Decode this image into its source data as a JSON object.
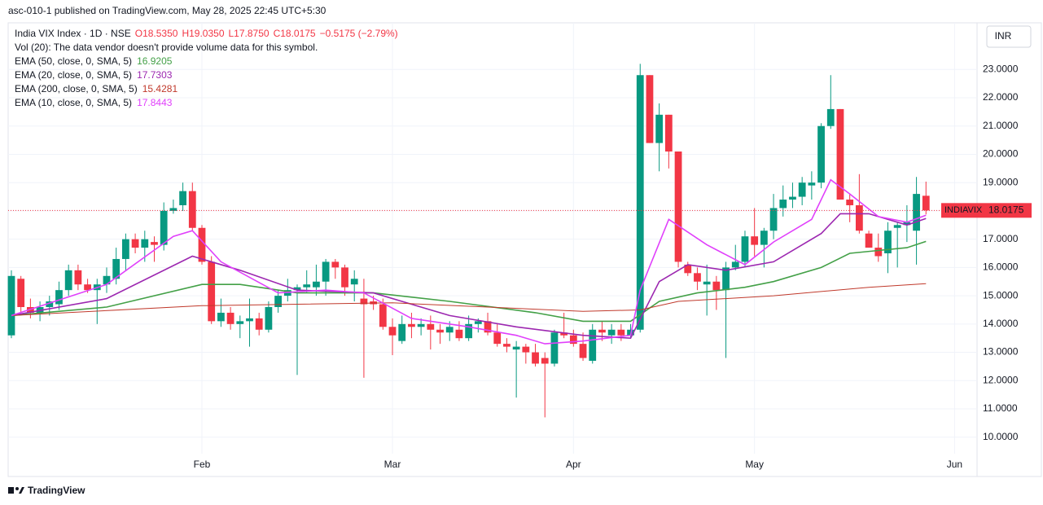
{
  "header": "asc-010-1 published on TradingView.com, May 28, 2025 22:45 UTC+5:30",
  "footer": "TradingView",
  "chart_data": {
    "type": "candlestick",
    "symbol": "India VIX Index · 1D · NSE",
    "ohlc_labels": [
      "O18.5350",
      "H19.0350",
      "L17.8750",
      "C18.0175",
      "−0.5175 (−2.79%)"
    ],
    "volume_note": "Vol (20): The data vendor doesn't provide volume data for this symbol.",
    "currency": "INR",
    "last_price": {
      "name": "INDIAVIX",
      "value": 18.0175
    },
    "up_color": "#089981",
    "down_color": "#f23645",
    "xlim": [
      -0.34,
      101.36
    ],
    "xticks": [
      {
        "value": 20,
        "label": "Feb"
      },
      {
        "value": 40,
        "label": "Mar"
      },
      {
        "value": 59,
        "label": "Apr"
      },
      {
        "value": 78,
        "label": "May"
      },
      {
        "value": 99,
        "label": "Jun"
      }
    ],
    "ylim": [
      8.61,
      24.65
    ],
    "yticks": [
      {
        "value": 10,
        "label": "10.0000"
      },
      {
        "value": 11,
        "label": "11.0000"
      },
      {
        "value": 12,
        "label": "12.0000"
      },
      {
        "value": 13,
        "label": "13.0000"
      },
      {
        "value": 14,
        "label": "14.0000"
      },
      {
        "value": 15,
        "label": "15.0000"
      },
      {
        "value": 16,
        "label": "16.0000"
      },
      {
        "value": 17,
        "label": "17.0000"
      },
      {
        "value": 18,
        "label": "18.0000"
      },
      {
        "value": 19,
        "label": "19.0000"
      },
      {
        "value": 20,
        "label": "20.0000"
      },
      {
        "value": 21,
        "label": "21.0000"
      },
      {
        "value": 22,
        "label": "22.0000"
      },
      {
        "value": 23,
        "label": "23.0000"
      }
    ],
    "grid": true,
    "candles": [
      [
        13.6,
        15.9,
        13.5,
        15.7
      ],
      [
        15.6,
        15.7,
        14.4,
        14.6
      ],
      [
        14.6,
        14.9,
        14.2,
        14.4
      ],
      [
        14.4,
        14.8,
        14.1,
        14.6
      ],
      [
        14.6,
        15.0,
        14.3,
        14.8
      ],
      [
        14.7,
        15.5,
        14.5,
        15.2
      ],
      [
        15.2,
        16.1,
        15.0,
        15.9
      ],
      [
        15.9,
        16.1,
        15.2,
        15.4
      ],
      [
        15.4,
        15.6,
        15.1,
        15.2
      ],
      [
        15.2,
        15.6,
        14.0,
        15.4
      ],
      [
        15.4,
        16.0,
        15.1,
        15.7
      ],
      [
        15.6,
        16.7,
        15.4,
        16.3
      ],
      [
        16.3,
        17.2,
        15.9,
        17.0
      ],
      [
        17.0,
        17.2,
        16.5,
        16.7
      ],
      [
        16.7,
        17.3,
        16.2,
        17.0
      ],
      [
        16.9,
        17.1,
        16.2,
        16.8
      ],
      [
        16.8,
        18.3,
        16.6,
        18.0
      ],
      [
        18.0,
        18.4,
        17.9,
        18.1
      ],
      [
        18.2,
        19.0,
        18.0,
        18.7
      ],
      [
        18.7,
        19.0,
        17.3,
        17.4
      ],
      [
        17.4,
        17.5,
        16.1,
        16.2
      ],
      [
        16.2,
        16.4,
        14.0,
        14.1
      ],
      [
        14.1,
        14.9,
        13.9,
        14.4
      ],
      [
        14.4,
        14.6,
        13.8,
        14.0
      ],
      [
        14.0,
        14.3,
        13.5,
        14.1
      ],
      [
        14.1,
        14.9,
        13.2,
        14.2
      ],
      [
        14.2,
        14.4,
        13.6,
        13.8
      ],
      [
        13.8,
        14.8,
        13.7,
        14.6
      ],
      [
        14.6,
        15.2,
        14.4,
        15.0
      ],
      [
        15.0,
        15.6,
        14.8,
        15.2
      ],
      [
        15.2,
        15.4,
        12.2,
        15.3
      ],
      [
        15.3,
        15.9,
        15.1,
        15.4
      ],
      [
        15.3,
        16.1,
        15.0,
        15.5
      ],
      [
        15.5,
        16.3,
        15.0,
        16.2
      ],
      [
        16.2,
        16.3,
        15.6,
        16.0
      ],
      [
        16.0,
        16.1,
        15.0,
        15.3
      ],
      [
        15.4,
        15.9,
        14.8,
        15.6
      ],
      [
        14.9,
        15.6,
        12.1,
        14.7
      ],
      [
        14.8,
        15.0,
        14.5,
        14.7
      ],
      [
        14.7,
        14.9,
        13.8,
        13.9
      ],
      [
        13.9,
        14.2,
        12.9,
        13.6
      ],
      [
        13.4,
        14.3,
        13.3,
        14.0
      ],
      [
        14.0,
        14.4,
        13.5,
        13.9
      ],
      [
        13.9,
        14.2,
        13.6,
        14.0
      ],
      [
        14.0,
        14.3,
        13.1,
        13.8
      ],
      [
        13.8,
        14.0,
        13.3,
        13.7
      ],
      [
        13.7,
        14.1,
        13.4,
        13.9
      ],
      [
        13.8,
        14.1,
        13.4,
        13.5
      ],
      [
        13.5,
        14.3,
        13.4,
        14.0
      ],
      [
        14.0,
        14.2,
        13.7,
        14.1
      ],
      [
        14.1,
        14.4,
        13.6,
        13.7
      ],
      [
        13.7,
        14.0,
        13.2,
        13.3
      ],
      [
        13.3,
        13.5,
        13.0,
        13.2
      ],
      [
        13.1,
        13.4,
        11.4,
        13.2
      ],
      [
        13.2,
        13.3,
        12.6,
        13.0
      ],
      [
        13.0,
        13.3,
        12.5,
        12.6
      ],
      [
        12.8,
        13.0,
        10.7,
        12.6
      ],
      [
        12.6,
        13.8,
        12.5,
        13.7
      ],
      [
        13.7,
        14.4,
        13.5,
        13.6
      ],
      [
        13.6,
        13.8,
        13.2,
        13.3
      ],
      [
        13.3,
        13.7,
        12.7,
        12.8
      ],
      [
        12.7,
        14.0,
        12.6,
        13.8
      ],
      [
        13.8,
        14.1,
        13.4,
        13.7
      ],
      [
        13.6,
        14.0,
        13.3,
        13.8
      ],
      [
        13.8,
        14.0,
        13.4,
        13.6
      ],
      [
        13.6,
        14.0,
        13.5,
        13.8
      ],
      [
        13.8,
        23.2,
        13.7,
        22.8
      ],
      [
        22.8,
        22.8,
        20.4,
        20.4
      ],
      [
        20.4,
        21.8,
        19.4,
        21.4
      ],
      [
        21.4,
        21.4,
        19.5,
        20.1
      ],
      [
        20.1,
        20.1,
        16.0,
        16.2
      ],
      [
        16.1,
        16.2,
        15.7,
        15.8
      ],
      [
        15.8,
        16.0,
        15.2,
        15.5
      ],
      [
        15.4,
        16.1,
        14.3,
        15.5
      ],
      [
        15.5,
        15.7,
        14.5,
        15.2
      ],
      [
        15.2,
        16.2,
        12.8,
        16.0
      ],
      [
        16.0,
        16.8,
        15.9,
        16.2
      ],
      [
        16.2,
        17.3,
        16.0,
        17.1
      ],
      [
        17.1,
        18.1,
        16.4,
        16.8
      ],
      [
        16.8,
        17.4,
        16.0,
        17.3
      ],
      [
        17.3,
        18.6,
        17.0,
        18.1
      ],
      [
        18.1,
        18.9,
        17.8,
        18.4
      ],
      [
        18.4,
        19.0,
        18.1,
        18.5
      ],
      [
        18.5,
        19.2,
        18.2,
        19.0
      ],
      [
        18.9,
        19.4,
        18.4,
        19.0
      ],
      [
        19.0,
        21.1,
        18.8,
        21.0
      ],
      [
        21.0,
        22.8,
        20.9,
        21.6
      ],
      [
        21.6,
        21.6,
        18.4,
        18.4
      ],
      [
        18.4,
        18.6,
        17.6,
        18.2
      ],
      [
        18.2,
        19.3,
        17.2,
        17.3
      ],
      [
        17.2,
        17.3,
        16.7,
        16.7
      ],
      [
        16.7,
        17.2,
        16.2,
        16.4
      ],
      [
        16.5,
        17.6,
        15.8,
        17.3
      ],
      [
        17.4,
        17.6,
        16.0,
        17.5
      ],
      [
        17.5,
        18.2,
        16.9,
        17.6
      ],
      [
        17.3,
        19.2,
        16.1,
        18.6
      ],
      [
        18.535,
        19.035,
        17.875,
        18.0175
      ]
    ],
    "series": [
      {
        "name": "EMA (50, close, 0, SMA, 5)",
        "color": "#43a047",
        "width": 1.6,
        "x": [
          0,
          10,
          20,
          24,
          30,
          38,
          46,
          55,
          60,
          65,
          68,
          72,
          77,
          80,
          85,
          88,
          91,
          94,
          96
        ],
        "values": [
          14.3,
          14.6,
          15.4,
          15.4,
          15.1,
          15.1,
          14.8,
          14.4,
          14.1,
          14.1,
          14.8,
          15.1,
          15.3,
          15.5,
          16.0,
          16.5,
          16.6,
          16.7,
          16.9205
        ],
        "last_label": "16.9205"
      },
      {
        "name": "EMA (20, close, 0, SMA, 5)",
        "color": "#9c27b0",
        "width": 1.6,
        "x": [
          0,
          10,
          19,
          24,
          30,
          38,
          46,
          53,
          60,
          65,
          68,
          71,
          75,
          80,
          85,
          87,
          90,
          94,
          96
        ],
        "values": [
          14.3,
          14.9,
          16.4,
          15.9,
          15.2,
          15.1,
          14.3,
          13.9,
          13.6,
          13.5,
          15.5,
          16.1,
          15.9,
          16.2,
          17.2,
          17.9,
          17.9,
          17.5,
          17.7303
        ],
        "last_label": "17.7303"
      },
      {
        "name": "EMA (200, close, 0, SMA, 5)",
        "color": "#c0392b",
        "width": 1,
        "x": [
          0,
          20,
          40,
          60,
          66,
          70,
          80,
          90,
          96
        ],
        "values": [
          14.3,
          14.65,
          14.75,
          14.45,
          14.5,
          14.8,
          15.0,
          15.3,
          15.4281
        ],
        "last_label": "15.4281"
      },
      {
        "name": "EMA (10, close, 0, SMA, 5)",
        "color": "#e040fb",
        "width": 1.6,
        "x": [
          0,
          10,
          17,
          19,
          22,
          28,
          33,
          37,
          42,
          48,
          53,
          56,
          60,
          65,
          66,
          69,
          73,
          77,
          80,
          84,
          86,
          88,
          91,
          94,
          96
        ],
        "values": [
          14.3,
          15.4,
          17.1,
          17.3,
          16.2,
          15.1,
          15.2,
          15.1,
          14.2,
          13.9,
          13.6,
          13.3,
          13.4,
          13.6,
          15.2,
          17.7,
          16.8,
          16.1,
          16.9,
          17.7,
          19.1,
          18.6,
          17.8,
          17.6,
          17.8443
        ],
        "last_label": "17.8443"
      }
    ]
  }
}
